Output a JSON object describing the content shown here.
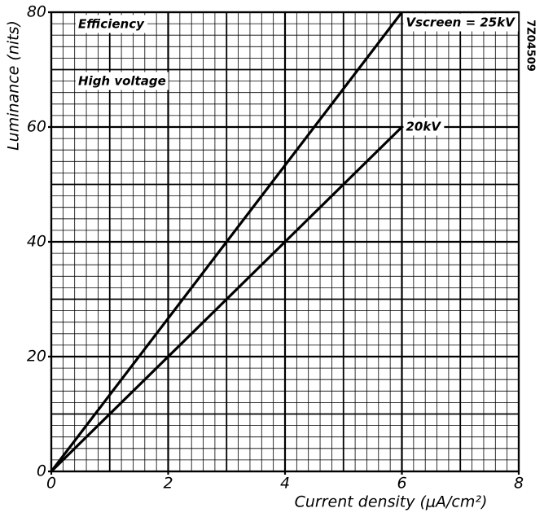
{
  "chart_data": {
    "type": "line",
    "x_label": "Current density (μA/cm²)",
    "y_label": "Luminance (nits)",
    "figure_code": "7Z04509",
    "annotations": [
      "Efficiency",
      "High voltage"
    ],
    "x": [
      0,
      6
    ],
    "series": [
      {
        "name": "Vscreen = 25kV",
        "color": "#000000",
        "values": [
          0,
          80
        ]
      },
      {
        "name": "20kV",
        "color": "#000000",
        "values": [
          0,
          60
        ]
      }
    ],
    "xlim": [
      0,
      8
    ],
    "xticks": [
      0,
      2,
      4,
      6,
      8
    ],
    "ylim": [
      0,
      80
    ],
    "yticks": [
      0,
      20,
      40,
      60,
      80
    ],
    "grid": {
      "major": [
        1,
        10
      ],
      "minor": [
        0.2,
        2
      ]
    }
  }
}
